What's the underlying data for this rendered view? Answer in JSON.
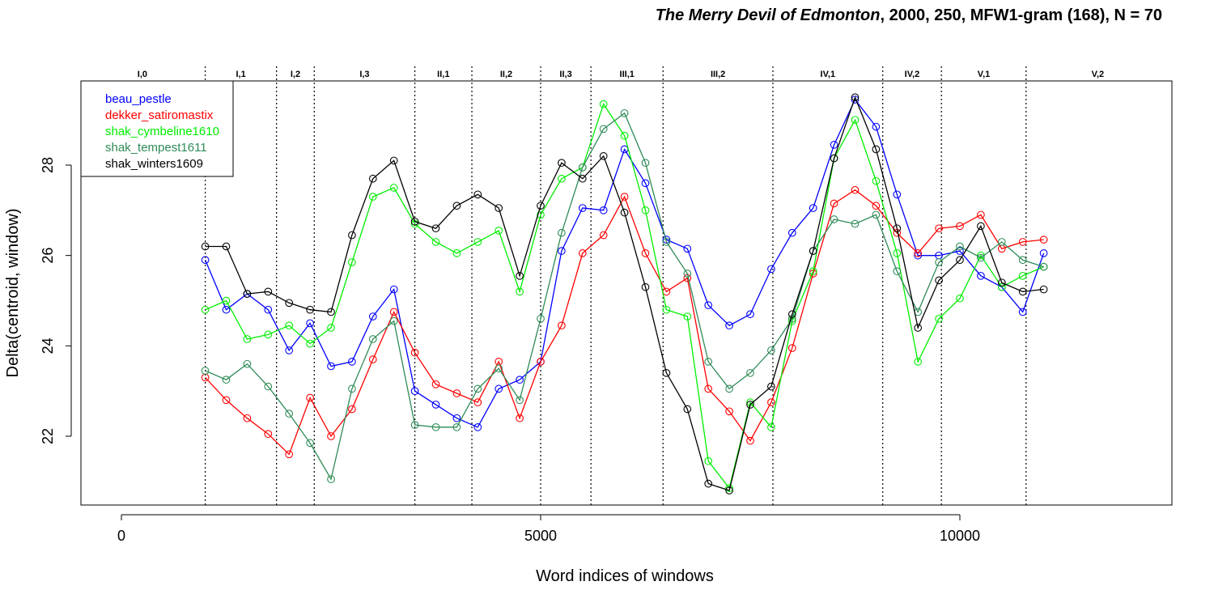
{
  "chart_data": {
    "type": "line",
    "title_italic": "The Merry Devil of Edmonton",
    "title_rest": ", 2000, 250, MFW1-gram (168), N = 70",
    "xlabel": "Word indices of windows",
    "ylabel": "Delta(centroid, window)",
    "xlim": [
      -500,
      12500
    ],
    "ylim": [
      20.5,
      29.9
    ],
    "x_ticks": [
      0,
      5000,
      10000
    ],
    "y_ticks": [
      22,
      24,
      26,
      28
    ],
    "legend_position": "top-left",
    "x": [
      1000,
      1250,
      1500,
      1750,
      2000,
      2250,
      2500,
      2750,
      3000,
      3250,
      3500,
      3750,
      4000,
      4250,
      4500,
      4750,
      5000,
      5250,
      5500,
      5750,
      6000,
      6250,
      6500,
      6750,
      7000,
      7250,
      7500,
      7750,
      8000,
      8250,
      8500,
      8750,
      9000,
      9250,
      9500,
      9750,
      10000,
      10250,
      10500,
      10750,
      11000
    ],
    "acts": [
      {
        "label": "I,0",
        "start": -500,
        "end": 1000
      },
      {
        "label": "I,1",
        "start": 1000,
        "end": 1850
      },
      {
        "label": "I,2",
        "start": 1850,
        "end": 2300
      },
      {
        "label": "I,3",
        "start": 2300,
        "end": 3500
      },
      {
        "label": "II,1",
        "start": 3500,
        "end": 4180
      },
      {
        "label": "II,2",
        "start": 4180,
        "end": 5000
      },
      {
        "label": "II,3",
        "start": 5000,
        "end": 5600
      },
      {
        "label": "III,1",
        "start": 5600,
        "end": 6460
      },
      {
        "label": "III,2",
        "start": 6460,
        "end": 7770
      },
      {
        "label": "IV,1",
        "start": 7770,
        "end": 9080
      },
      {
        "label": "IV,2",
        "start": 9080,
        "end": 9780
      },
      {
        "label": "V,1",
        "start": 9780,
        "end": 10790
      },
      {
        "label": "V,2",
        "start": 10790,
        "end": 12500
      }
    ],
    "series": [
      {
        "name": "beau_pestle",
        "color": "#0000ff",
        "values": [
          25.9,
          24.8,
          25.15,
          24.8,
          23.9,
          24.5,
          23.55,
          23.65,
          24.65,
          25.25,
          23.0,
          22.7,
          22.4,
          22.2,
          23.05,
          23.25,
          23.65,
          26.1,
          27.05,
          27.0,
          28.35,
          27.6,
          26.35,
          26.15,
          24.9,
          24.45,
          24.7,
          25.7,
          26.5,
          27.05,
          28.45,
          29.45,
          28.85,
          27.35,
          26.0,
          26.0,
          26.1,
          25.55,
          25.3,
          24.75,
          26.05
        ]
      },
      {
        "name": "dekker_satiromastix",
        "color": "#ff0000",
        "values": [
          23.3,
          22.8,
          22.4,
          22.05,
          21.6,
          22.85,
          22.0,
          22.6,
          23.7,
          24.75,
          23.85,
          23.15,
          22.95,
          22.75,
          23.65,
          22.4,
          23.65,
          24.45,
          26.05,
          26.45,
          27.3,
          26.05,
          25.2,
          25.5,
          23.05,
          22.55,
          21.9,
          22.75,
          23.95,
          25.6,
          27.15,
          27.45,
          27.1,
          26.5,
          26.05,
          26.6,
          26.65,
          26.9,
          26.15,
          26.3,
          26.35
        ]
      },
      {
        "name": "shak_cymbeline1610",
        "color": "#00ee00",
        "values": [
          24.8,
          25.0,
          24.15,
          24.25,
          24.45,
          24.05,
          24.4,
          25.85,
          27.3,
          27.5,
          26.7,
          26.3,
          26.05,
          26.3,
          26.55,
          25.2,
          26.9,
          27.7,
          27.95,
          29.35,
          28.65,
          27.0,
          24.8,
          24.65,
          21.45,
          20.85,
          22.75,
          22.2,
          24.55,
          25.65,
          28.15,
          29.0,
          27.65,
          26.05,
          23.65,
          24.6,
          25.05,
          26.0,
          25.3,
          25.55,
          25.75
        ]
      },
      {
        "name": "shak_tempest1611",
        "color": "#2e8b57",
        "values": [
          23.45,
          23.25,
          23.6,
          23.1,
          22.5,
          21.85,
          21.05,
          23.05,
          24.15,
          24.55,
          22.25,
          22.2,
          22.2,
          23.05,
          23.5,
          22.8,
          24.6,
          26.5,
          27.95,
          28.8,
          29.15,
          28.05,
          26.3,
          25.6,
          23.65,
          23.05,
          23.4,
          23.9,
          24.6,
          26.1,
          26.8,
          26.7,
          26.9,
          25.65,
          24.75,
          25.85,
          26.2,
          25.95,
          26.3,
          25.9,
          25.75
        ]
      },
      {
        "name": "shak_winters1609",
        "color": "#000000",
        "values": [
          26.2,
          26.2,
          25.15,
          25.2,
          24.95,
          24.8,
          24.75,
          26.45,
          27.7,
          28.1,
          26.75,
          26.6,
          27.1,
          27.35,
          27.05,
          25.55,
          27.1,
          28.05,
          27.7,
          28.2,
          26.95,
          25.3,
          23.4,
          22.6,
          20.95,
          20.8,
          22.7,
          23.1,
          24.7,
          26.1,
          28.15,
          29.5,
          28.35,
          26.6,
          24.4,
          25.45,
          25.9,
          26.65,
          25.4,
          25.2,
          25.25
        ]
      }
    ]
  }
}
